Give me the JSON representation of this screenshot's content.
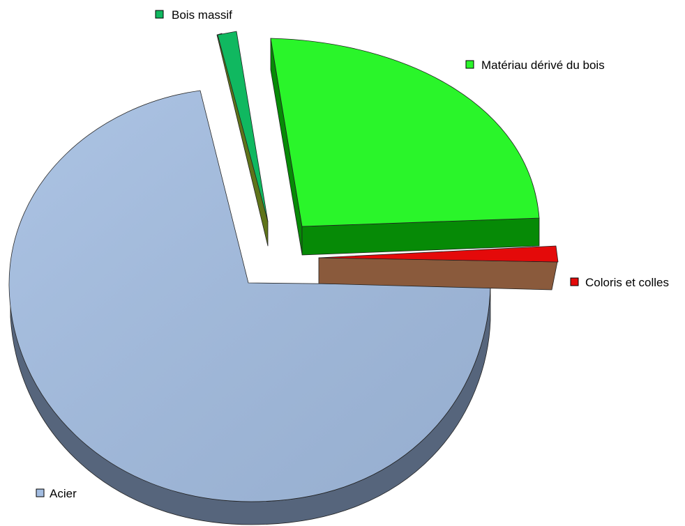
{
  "chart_data": {
    "type": "pie",
    "title": "",
    "style": "3d-exploded",
    "slices": [
      {
        "label": "Acier",
        "value": 70.5,
        "color": "#a3bde1",
        "side_color": "#56657c"
      },
      {
        "label": "Bois massif",
        "value": 1.3,
        "color": "#10b860",
        "side_color": "#5f741a"
      },
      {
        "label": "Matériau dérivé du bois",
        "value": 25.8,
        "color": "#2af52a",
        "side_color": "#068a06"
      },
      {
        "label": "Coloris et colles",
        "value": 0.9,
        "color": "#e40a0a",
        "side_color": "#8a5a3c"
      }
    ],
    "legend": "beside each slice"
  }
}
